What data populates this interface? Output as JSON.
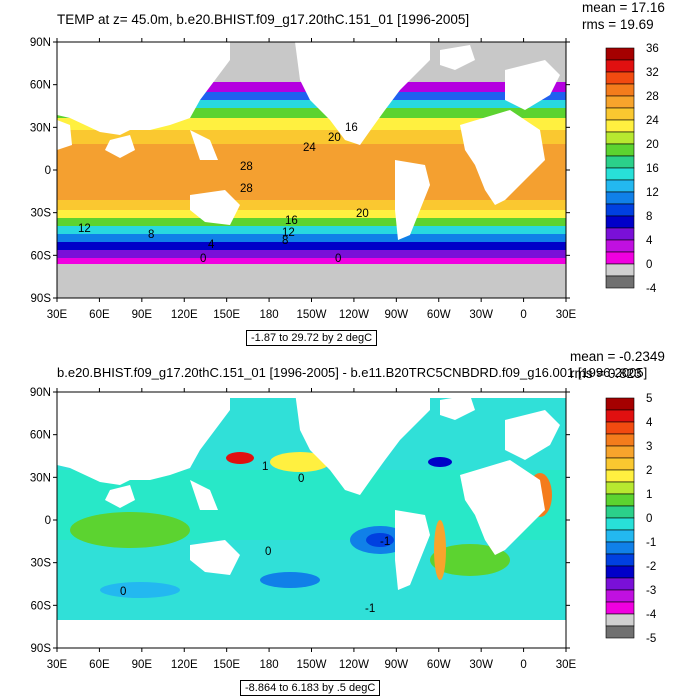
{
  "panel1": {
    "title": "TEMP at z=  45.0m, b.e20.BHIST.f09_g17.20thC.151_01 [1996-2005]",
    "mean": "mean = 17.16",
    "rms": "rms = 19.69",
    "range": "-1.87 to 29.72 by 2 degC",
    "colorbar": {
      "labels": [
        "36",
        "32",
        "28",
        "24",
        "20",
        "16",
        "12",
        "8",
        "4",
        "0",
        "-4"
      ],
      "colors": [
        "#a50000",
        "#e01010",
        "#f24a10",
        "#f47c1c",
        "#f7a42c",
        "#fac830",
        "#fff040",
        "#b8e830",
        "#5cd330",
        "#2bd08a",
        "#28e0d8",
        "#23b8f0",
        "#1080e8",
        "#0040e0",
        "#0000c8",
        "#7a10d8",
        "#c010e0",
        "#f000e0",
        "#d0d0d0",
        "#707070"
      ]
    },
    "contour_labels": [
      "16",
      "20",
      "24",
      "28",
      "28",
      "20",
      "16",
      "12",
      "12",
      "8",
      "8",
      "4",
      "0",
      "0"
    ]
  },
  "panel2": {
    "title": "b.e20.BHIST.f09_g17.20thC.151_01 [1996-2005] - b.e11.B20TRC5CNBDRD.f09_g16.001 [1996-2005]",
    "mean": "mean = -0.2349",
    "rms": "rms = 0.823",
    "range": "-8.864 to 6.183 by .5 degC",
    "colorbar": {
      "labels": [
        "5",
        "4",
        "3",
        "2",
        "1",
        "0",
        "-1",
        "-2",
        "-3",
        "-4",
        "-5"
      ],
      "colors": [
        "#a50000",
        "#e01010",
        "#f24a10",
        "#f47c1c",
        "#f7a42c",
        "#fac830",
        "#fff040",
        "#b8e830",
        "#5cd330",
        "#2bd08a",
        "#28e0d8",
        "#23b8f0",
        "#1080e8",
        "#0040e0",
        "#0000c8",
        "#7a10d8",
        "#c010e0",
        "#f000e0",
        "#d0d0d0",
        "#707070"
      ]
    },
    "contour_labels": [
      "1",
      "0",
      "0",
      "0",
      "-1",
      "-1"
    ]
  },
  "axes": {
    "lat_labels": [
      "90N",
      "60N",
      "30N",
      "0",
      "30S",
      "60S",
      "90S"
    ],
    "lon_labels": [
      "30E",
      "60E",
      "90E",
      "120E",
      "150E",
      "180",
      "150W",
      "120W",
      "90W",
      "60W",
      "30W",
      "0",
      "30E"
    ]
  }
}
